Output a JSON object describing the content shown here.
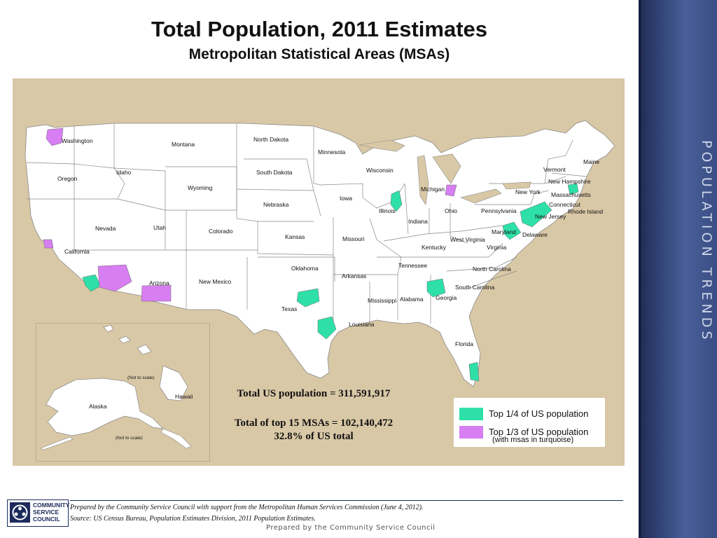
{
  "title": "Total Population, 2011 Estimates",
  "subtitle": "Metropolitan Statistical Areas (MSAs)",
  "side_title": "Population Trends",
  "map": {
    "state_labels": [
      "Washington",
      "Montana",
      "North Dakota",
      "Minnesota",
      "Oregon",
      "Idaho",
      "South Dakota",
      "Wisconsin",
      "Michigan",
      "Wyoming",
      "Iowa",
      "Nebraska",
      "Illinois",
      "Indiana",
      "Ohio",
      "Pennsylvania",
      "New York",
      "Vermont",
      "Maine",
      "New Hampshire",
      "Massachusetts",
      "Connecticut",
      "Rhode Island",
      "New Jersey",
      "Maryland",
      "Delaware",
      "West Virginia",
      "Virginia",
      "Kentucky",
      "Nevada",
      "Utah",
      "Colorado",
      "Kansas",
      "Missouri",
      "California",
      "Oklahoma",
      "Arkansas",
      "Tennessee",
      "North Carolina",
      "South Carolina",
      "Arizona",
      "New Mexico",
      "Texas",
      "Mississippi",
      "Alabama",
      "Georgia",
      "Louisiana",
      "Florida",
      "Alaska",
      "Hawaii"
    ],
    "inset_notes": [
      "(Not to scale)",
      "(Not to scale)"
    ]
  },
  "stats": {
    "total_us": "Total US population = 311,591,917",
    "top15": "Total of top 15 MSAs = 102,140,472",
    "pct": "32.8% of US total"
  },
  "legend": {
    "items": [
      {
        "label": "Top 1/4 of US population",
        "color": "#2ee0a8"
      },
      {
        "label": "Top 1/3 of US population",
        "color": "#d77ef2"
      }
    ],
    "note": "(with msas in turquoise)"
  },
  "credits": {
    "line1": "Prepared by the Community Service Council with support from the Metropolitan Human Services Commission (June 4, 2012).",
    "line2": "Source:  US Census Bureau, Population Estimates Division, 2011 Population Estimates."
  },
  "logo": {
    "line1": "COMMUNITY",
    "line2": "SERVICE",
    "line3": "COUNCIL"
  },
  "footer": "Prepared by the Community Service Council"
}
